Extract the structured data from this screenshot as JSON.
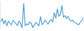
{
  "chart_data": {
    "type": "line",
    "color": "#4a9fd5",
    "categories": [
      null,
      null,
      null,
      null,
      null,
      null,
      null,
      null,
      null,
      null,
      null,
      null,
      null,
      null,
      null,
      null,
      null,
      null,
      null,
      null,
      null,
      null,
      null,
      null,
      null,
      null,
      null,
      null,
      null,
      null,
      null,
      null,
      null,
      null,
      null,
      null,
      null,
      null,
      null,
      null,
      null,
      null,
      null,
      null,
      null,
      null,
      null,
      null,
      null,
      null,
      null,
      null,
      null,
      null,
      null
    ],
    "values": [
      45,
      55,
      40,
      50,
      35,
      48,
      42,
      38,
      50,
      45,
      40,
      36,
      48,
      42,
      30,
      95,
      35,
      40,
      38,
      45,
      42,
      30,
      38,
      44,
      40,
      35,
      60,
      38,
      42,
      50,
      45,
      40,
      48,
      52,
      45,
      70,
      55,
      80,
      60,
      65,
      90,
      58,
      62,
      55,
      60,
      52,
      48,
      50,
      45,
      42,
      40,
      38,
      45,
      48,
      58
    ],
    "ylim": [
      25,
      100
    ],
    "yticks": [],
    "grid": false,
    "tick_labels": false
  }
}
